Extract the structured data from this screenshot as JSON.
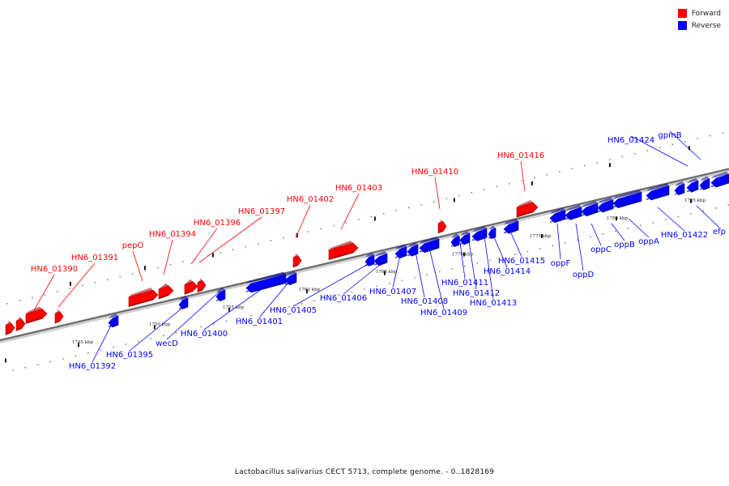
{
  "legend": {
    "forward_label": "Forward",
    "reverse_label": "Reverse",
    "forward_color": "#ff0000",
    "reverse_color": "#0000ff"
  },
  "caption": "Lactobacillus salivarius CECT 5713, complete genome. - 0..1828169",
  "axis_ticks": [
    "1745 kbp",
    "1750 kbp",
    "1755 kbp",
    "1760 kbp",
    "1765 kbp",
    "1770 kbp",
    "1775 kbp",
    "1780 kbp",
    "1785 kbp"
  ],
  "forward_genes": [
    "HN6_01390",
    "HN6_01391",
    "pepO",
    "HN6_01394",
    "HN6_01396",
    "HN6_01397",
    "HN6_01402",
    "HN6_01403",
    "HN6_01410",
    "HN6_01416"
  ],
  "reverse_genes": [
    "HN6_01392",
    "HN6_01395",
    "wecD",
    "HN6_01400",
    "HN6_01401",
    "HN6_01405",
    "HN6_01406",
    "HN6_01407",
    "HN6_01408",
    "HN6_01409",
    "HN6_01411",
    "HN6_01412",
    "HN6_01413",
    "HN6_01414",
    "HN6_01415",
    "oppF",
    "oppD",
    "oppC",
    "oppB",
    "oppA",
    "HN6_01422",
    "efp",
    "HN6_01424",
    "gpmB"
  ]
}
